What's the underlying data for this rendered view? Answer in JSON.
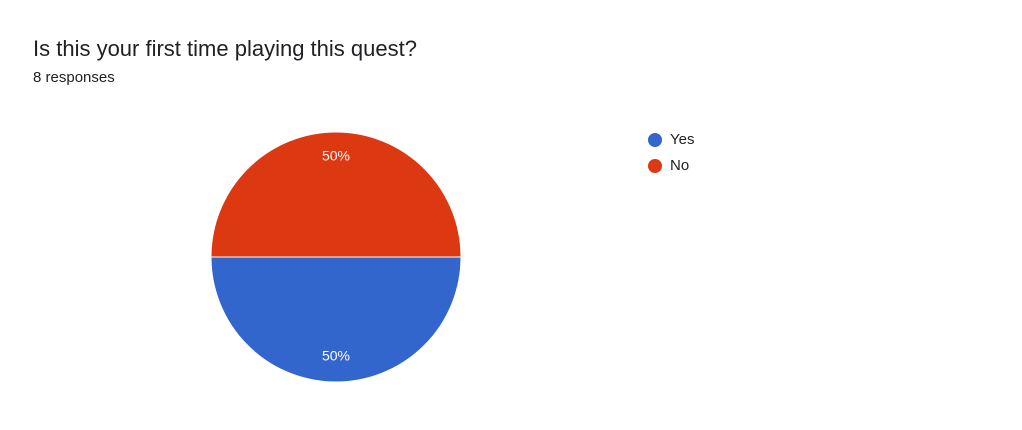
{
  "chart_data": {
    "type": "pie",
    "title": "Is this your first time playing this quest?",
    "subtitle": "8 responses",
    "categories": [
      "Yes",
      "No"
    ],
    "values": [
      50,
      50
    ],
    "value_labels": [
      "50%",
      "50%"
    ],
    "colors": [
      "#3366cc",
      "#dc3912"
    ],
    "legend": "right"
  }
}
